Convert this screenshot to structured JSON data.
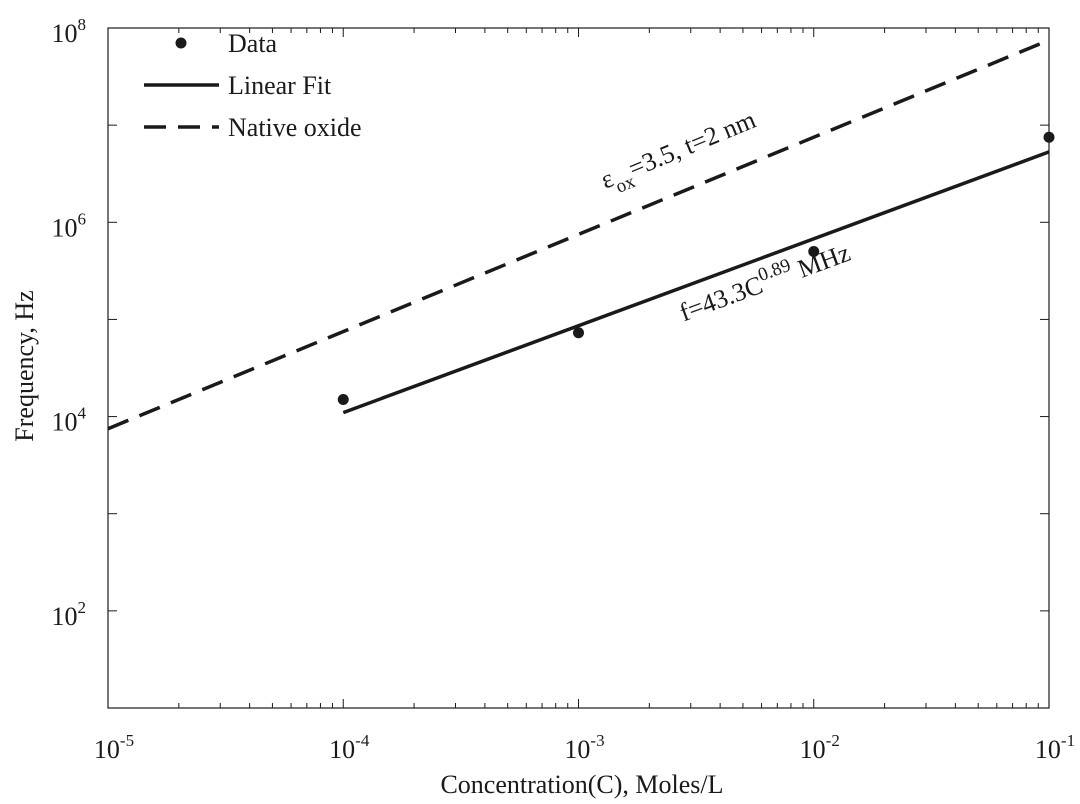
{
  "chart_data": {
    "type": "line",
    "title": "",
    "xlabel": "Concentration(C), Moles/L",
    "ylabel": "Frequency, Hz",
    "xscale": "log",
    "yscale": "log",
    "xlim": [
      1e-05,
      0.1
    ],
    "ylim": [
      10,
      100000000
    ],
    "grid": false,
    "legend_position": "top-left",
    "x_ticks": [
      {
        "value": 1e-05,
        "base": "10",
        "exp": "-5"
      },
      {
        "value": 0.0001,
        "base": "10",
        "exp": "-4"
      },
      {
        "value": 0.001,
        "base": "10",
        "exp": "-3"
      },
      {
        "value": 0.01,
        "base": "10",
        "exp": "-2"
      },
      {
        "value": 0.1,
        "base": "10",
        "exp": "-1"
      }
    ],
    "y_ticks": [
      {
        "value": 100,
        "base": "10",
        "exp": "2"
      },
      {
        "value": 10000,
        "base": "10",
        "exp": "4"
      },
      {
        "value": 1000000,
        "base": "10",
        "exp": "6"
      },
      {
        "value": 100000000,
        "base": "10",
        "exp": "8"
      }
    ],
    "series": [
      {
        "name": "Data",
        "style": "markers",
        "color": "#1a1a1a",
        "points": [
          {
            "x": 0.0001,
            "y": 15000
          },
          {
            "x": 0.001,
            "y": 73000
          },
          {
            "x": 0.01,
            "y": 500000
          },
          {
            "x": 0.1,
            "y": 7500000
          }
        ]
      },
      {
        "name": "Linear Fit",
        "style": "solid",
        "color": "#1a1a1a",
        "points": [
          {
            "x": 0.0001,
            "y": 11000
          },
          {
            "x": 0.1,
            "y": 5300000
          }
        ]
      },
      {
        "name": "Native oxide",
        "style": "dashed",
        "color": "#1a1a1a",
        "points": [
          {
            "x": 1e-05,
            "y": 7500
          },
          {
            "x": 0.1,
            "y": 75000000
          }
        ]
      }
    ],
    "annotations": [
      {
        "id": "native",
        "x": 0.0013,
        "y": 2200000,
        "prefix": "ε",
        "sub": "ox",
        "suffix": "=3.5, t=2 nm"
      },
      {
        "id": "fit",
        "x": 0.0028,
        "y": 95000,
        "prefix": "f=43.3C",
        "sup": "0.89",
        "suffix": " MHz"
      }
    ]
  }
}
